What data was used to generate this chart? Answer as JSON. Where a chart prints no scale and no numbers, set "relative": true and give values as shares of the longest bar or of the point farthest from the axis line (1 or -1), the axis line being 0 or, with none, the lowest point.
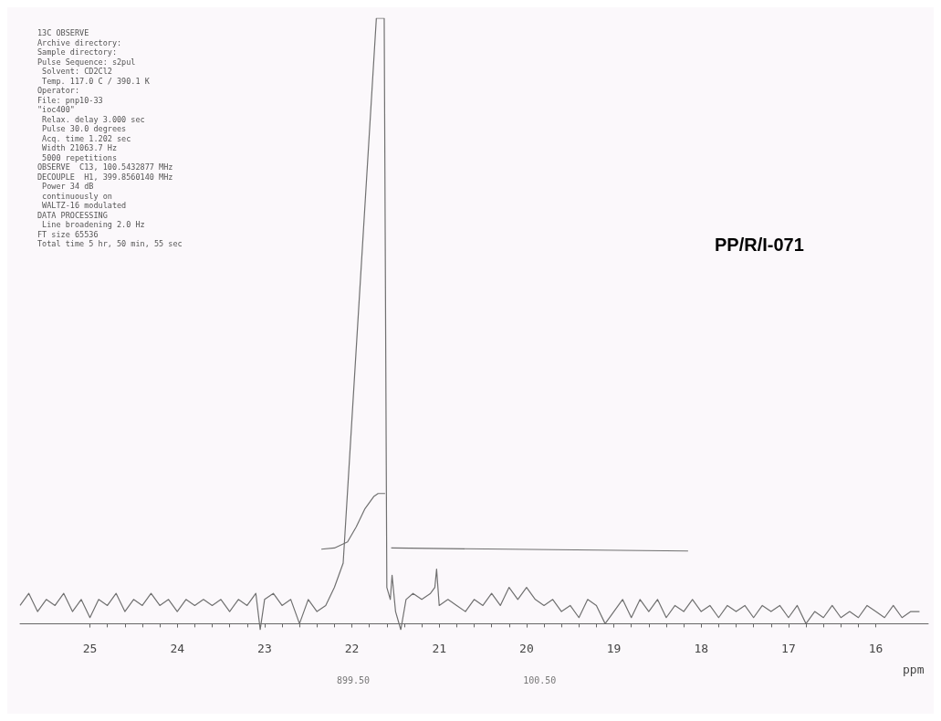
{
  "chart_data": {
    "type": "line",
    "title": "13C OBSERVE",
    "subtitle": "PP/R/I-071",
    "xlabel": "ppm",
    "relative": true,
    "xlim": [
      25.8,
      15.4
    ],
    "xticks": [
      25,
      24,
      23,
      22,
      21,
      20,
      19,
      18,
      17,
      16
    ],
    "grid": false,
    "marker": "none",
    "line_style": "solid",
    "annotations": [
      "Archive directory:",
      "Sample directory:",
      "Pulse Sequence: s2pul",
      " Solvent: CD2Cl2",
      " Temp. 117.0 C / 390.1 K",
      "Operator:",
      "File: pnp10-33",
      "\"ioc400\"",
      " Relax. delay 3.000 sec",
      " Pulse 30.0 degrees",
      " Acq. time 1.202 sec",
      " Width 21063.7 Hz",
      " 5000 repetitions",
      "OBSERVE  C13, 100.5432877 MHz",
      "DECOUPLE  H1, 399.8560140 MHz",
      " Power 34 dB",
      " continuously on",
      " WALTZ-16 modulated",
      "DATA PROCESSING",
      " Line broadening 2.0 Hz",
      "FT size 65536",
      "Total time 5 hr, 50 min, 55 sec",
      "899.50",
      "100.50"
    ],
    "series": [
      {
        "color": "#707070",
        "x": [
          25.8,
          25.7,
          25.6,
          25.5,
          25.4,
          25.3,
          25.2,
          25.1,
          25.0,
          24.9,
          24.8,
          24.7,
          24.6,
          24.5,
          24.4,
          24.3,
          24.2,
          24.1,
          24.0,
          23.9,
          23.8,
          23.7,
          23.6,
          23.5,
          23.4,
          23.3,
          23.2,
          23.1,
          23.05,
          23.0,
          22.9,
          22.8,
          22.7,
          22.6,
          22.5,
          22.4,
          22.3,
          22.2,
          22.15,
          22.1,
          21.72,
          21.67,
          21.63,
          21.6,
          21.56,
          21.54,
          21.5,
          21.44,
          21.38,
          21.3,
          21.2,
          21.1,
          21.05,
          21.03,
          21.0,
          20.9,
          20.8,
          20.7,
          20.6,
          20.5,
          20.4,
          20.3,
          20.2,
          20.1,
          20.0,
          19.9,
          19.8,
          19.7,
          19.6,
          19.5,
          19.4,
          19.3,
          19.2,
          19.1,
          19.0,
          18.9,
          18.8,
          18.7,
          18.6,
          18.5,
          18.4,
          18.3,
          18.2,
          18.1,
          18.0,
          17.9,
          17.8,
          17.7,
          17.6,
          17.5,
          17.4,
          17.3,
          17.2,
          17.1,
          17.0,
          16.9,
          16.8,
          16.7,
          16.6,
          16.5,
          16.4,
          16.3,
          16.2,
          16.1,
          16.0,
          15.9,
          15.8,
          15.7,
          15.6,
          15.5
        ],
        "values": [
          0.03,
          0.05,
          0.02,
          0.04,
          0.03,
          0.05,
          0.02,
          0.04,
          0.01,
          0.04,
          0.03,
          0.05,
          0.02,
          0.04,
          0.03,
          0.05,
          0.03,
          0.04,
          0.02,
          0.04,
          0.03,
          0.04,
          0.03,
          0.04,
          0.02,
          0.04,
          0.03,
          0.05,
          -0.01,
          0.04,
          0.05,
          0.03,
          0.04,
          0.0,
          0.04,
          0.02,
          0.03,
          0.06,
          0.08,
          0.1,
          1,
          1,
          1,
          0.06,
          0.04,
          0.08,
          0.02,
          -0.01,
          0.04,
          0.05,
          0.04,
          0.05,
          0.06,
          0.09,
          0.03,
          0.04,
          0.03,
          0.02,
          0.04,
          0.03,
          0.05,
          0.03,
          0.06,
          0.04,
          0.06,
          0.04,
          0.03,
          0.04,
          0.02,
          0.03,
          0.01,
          0.04,
          0.03,
          0.0,
          0.02,
          0.04,
          0.01,
          0.04,
          0.02,
          0.04,
          0.01,
          0.03,
          0.02,
          0.04,
          0.02,
          0.03,
          0.01,
          0.03,
          0.02,
          0.03,
          0.01,
          0.03,
          0.02,
          0.03,
          0.01,
          0.03,
          0.0,
          0.02,
          0.01,
          0.03,
          0.01,
          0.02,
          0.01,
          0.03,
          0.02,
          0.01,
          0.03,
          0.01,
          0.02,
          0.02
        ]
      },
      {
        "color": "#707070",
        "x": [
          22.35,
          22.2,
          22.05,
          21.95,
          21.85,
          21.75,
          21.7,
          21.62,
          21.6,
          21.55,
          18.15
        ],
        "values": [
          0.123,
          0.125,
          0.135,
          0.16,
          0.19,
          0.21,
          0.215,
          0.215,
          null,
          0.125,
          0.12
        ]
      }
    ]
  }
}
